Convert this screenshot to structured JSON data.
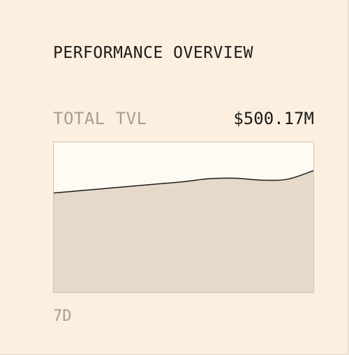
{
  "panel": {
    "title": "PERFORMANCE OVERVIEW",
    "metric_label": "TOTAL TVL",
    "metric_value": "$500.17M",
    "period_label": "7D"
  },
  "colors": {
    "background": "#fcefdf",
    "area_fill": "#e6d9ca",
    "line": "#1d1b18",
    "muted_text": "#a79e92"
  },
  "chart_data": {
    "type": "area",
    "title": "",
    "xlabel": "",
    "ylabel": "",
    "grid": false,
    "ylim": [
      0,
      100
    ],
    "values": [
      66,
      67.5,
      69,
      70.5,
      72,
      73.5,
      75.5,
      75.8,
      74.5,
      75.2,
      81
    ]
  }
}
